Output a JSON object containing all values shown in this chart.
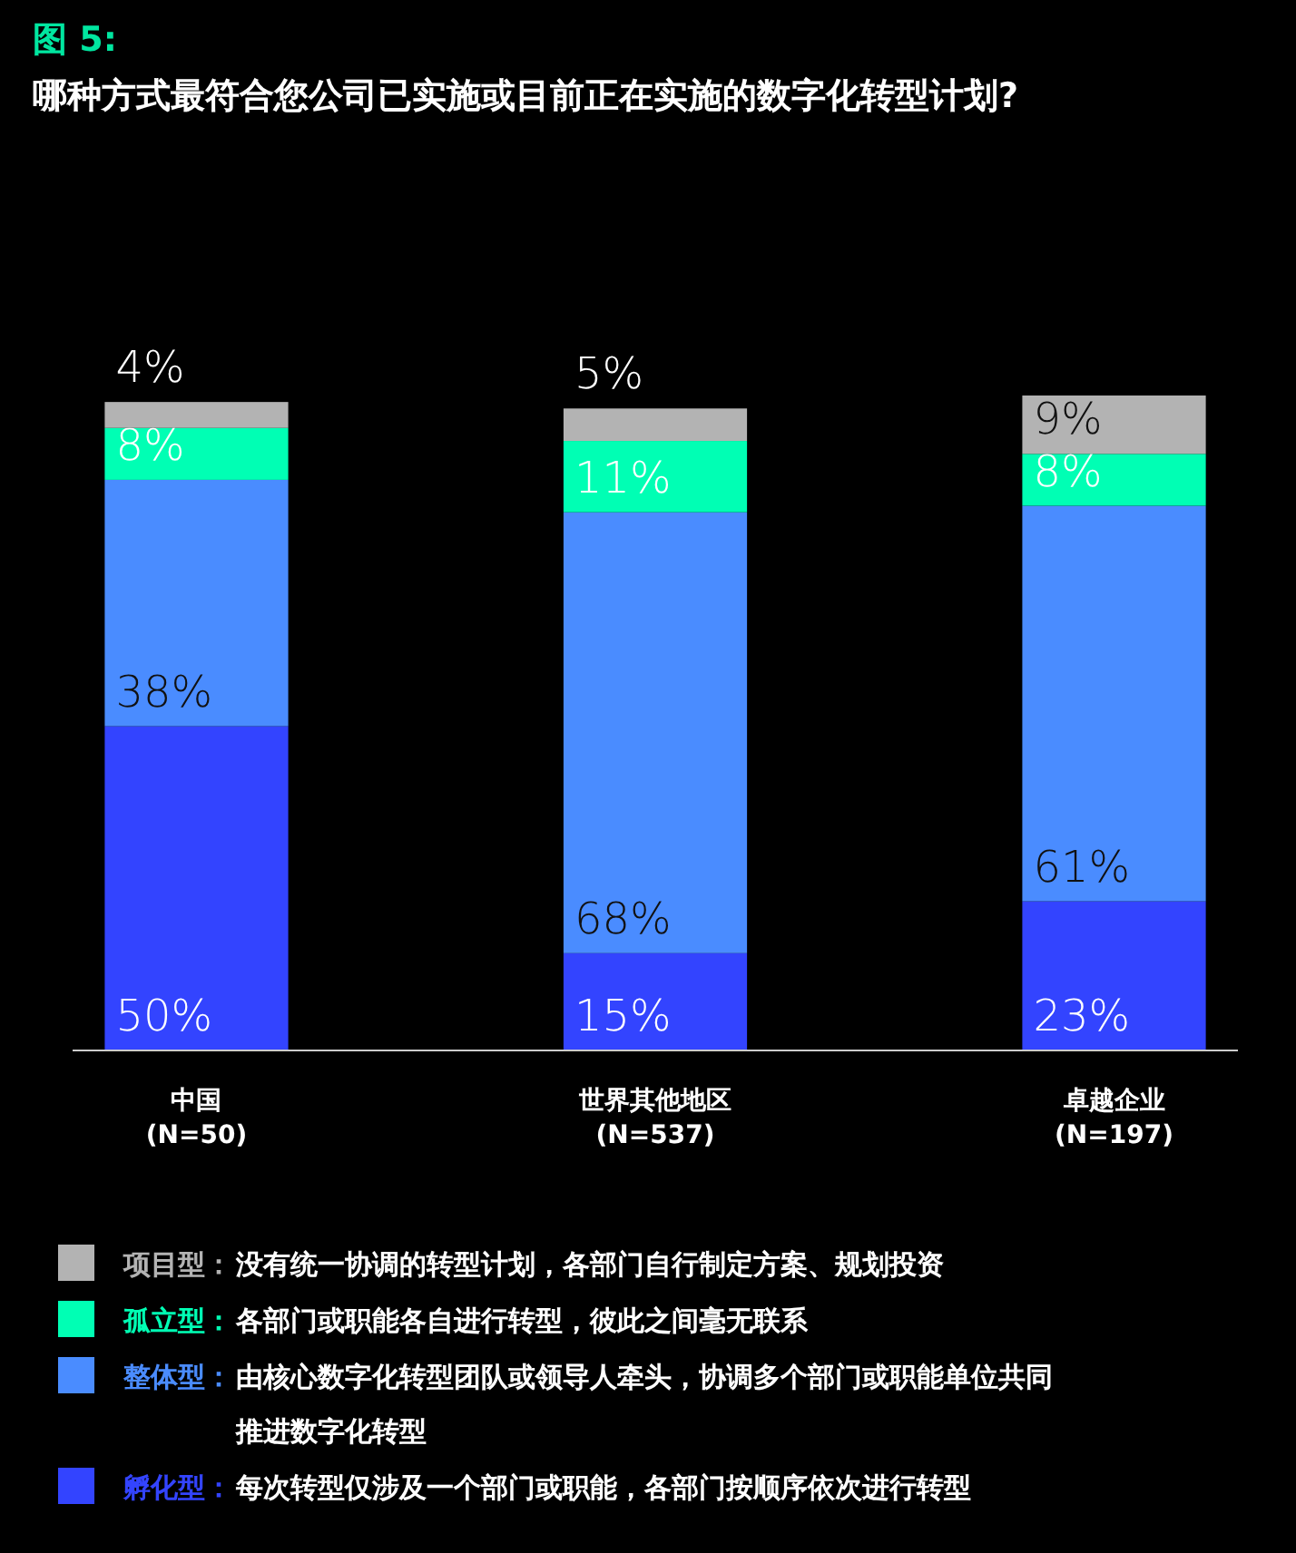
{
  "chart_data": {
    "type": "bar",
    "stacked": true,
    "title": "图 5:",
    "subtitle": "哪种方式最符合您公司已实施或目前正在实施的数字化转型计划?",
    "categories": [
      "中国\n(N=50)",
      "世界其他地区\n(N=537)",
      "卓越企业\n(N=197)"
    ],
    "series": [
      {
        "name": "孵化型：每次转型仅涉及一个部门或职能，各部门按顺序依次进行转型",
        "color": "#3344ff",
        "values": [
          50,
          15,
          23
        ],
        "value_labels": [
          "50%",
          "15%",
          "23%"
        ]
      },
      {
        "name": "整体型：由核心数字化转型团队或领导人牵头，协调多个部门或职能单位共同推进数字化转型",
        "color": "#4a8cff",
        "values": [
          38,
          68,
          61
        ],
        "value_labels": [
          "38%",
          "68%",
          "61%"
        ]
      },
      {
        "name": "孤立型：各部门或职能各自进行转型，彼此之间毫无联系",
        "color": "#00ffb4",
        "values": [
          8,
          11,
          8
        ],
        "value_labels": [
          "8%",
          "11%",
          "8%"
        ]
      },
      {
        "name": "项目型：没有统一协调的转型计划，各部门自行制定方案、规划投资",
        "color": "#b3b3b3",
        "values": [
          4,
          5,
          9
        ],
        "value_labels": [
          "4%",
          "5%",
          "9%"
        ]
      }
    ],
    "legend": "bottom",
    "tick_labels": "x"
  }
}
